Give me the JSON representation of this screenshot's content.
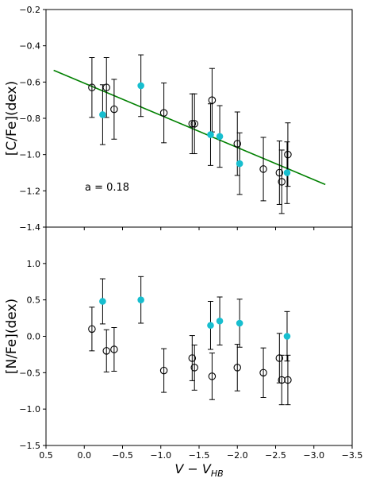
{
  "chart_data": [
    {
      "type": "scatter",
      "title": "",
      "xlabel": "",
      "ylabel": "[C/Fe](dex)",
      "xlim": [
        0.5,
        -3.5
      ],
      "ylim": [
        -1.4,
        -0.2
      ],
      "yticks": [
        -1.4,
        -1.2,
        -1.0,
        -0.8,
        -0.6,
        -0.4,
        -0.2
      ],
      "annotation": "a = 0.18",
      "fit_line": {
        "x": [
          0.4,
          -3.15
        ],
        "y": [
          -0.535,
          -1.165
        ],
        "color": "#008000"
      },
      "series": [
        {
          "marker": "open-circle",
          "color": "#000000",
          "points": [
            {
              "x": -0.1,
              "y": -0.63,
              "err": 0.165
            },
            {
              "x": -0.29,
              "y": -0.63,
              "err": 0.165
            },
            {
              "x": -0.39,
              "y": -0.75,
              "err": 0.165
            },
            {
              "x": -1.04,
              "y": -0.77,
              "err": 0.165
            },
            {
              "x": -1.41,
              "y": -0.83,
              "err": 0.165
            },
            {
              "x": -1.44,
              "y": -0.83,
              "err": 0.165
            },
            {
              "x": -1.67,
              "y": -0.7,
              "err": 0.175
            },
            {
              "x": -2.0,
              "y": -0.94,
              "err": 0.175
            },
            {
              "x": -2.34,
              "y": -1.08,
              "err": 0.175
            },
            {
              "x": -2.55,
              "y": -1.1,
              "err": 0.175
            },
            {
              "x": -2.58,
              "y": -1.15,
              "err": 0.175
            },
            {
              "x": -2.66,
              "y": -1.0,
              "err": 0.175
            }
          ]
        },
        {
          "marker": "filled-circle",
          "color": "#17becf",
          "points": [
            {
              "x": -0.24,
              "y": -0.78,
              "err": 0.165
            },
            {
              "x": -0.74,
              "y": -0.62,
              "err": 0.17
            },
            {
              "x": -1.65,
              "y": -0.89,
              "err": 0.17
            },
            {
              "x": -1.77,
              "y": -0.9,
              "err": 0.17
            },
            {
              "x": -2.03,
              "y": -1.05,
              "err": 0.17
            },
            {
              "x": -2.65,
              "y": -1.1,
              "err": 0.17
            }
          ]
        }
      ]
    },
    {
      "type": "scatter",
      "title": "",
      "xlabel": "V − V",
      "xlabel_sub": "HB",
      "ylabel": "[N/Fe](dex)",
      "xlim": [
        0.5,
        -3.5
      ],
      "ylim": [
        -1.5,
        1.5
      ],
      "xticks": [
        0.5,
        0.0,
        -0.5,
        -1.0,
        -1.5,
        -2.0,
        -2.5,
        -3.0,
        -3.5
      ],
      "xtick_labels": [
        "0.5",
        "0.0",
        "−0.5",
        "−1.0",
        "−1.5",
        "−2.0",
        "−2.5",
        "−3.0",
        "−3.5"
      ],
      "yticks": [
        -1.5,
        -1.0,
        -0.5,
        0.0,
        0.5,
        1.0
      ],
      "series": [
        {
          "marker": "open-circle",
          "color": "#000000",
          "points": [
            {
              "x": -0.1,
              "y": 0.1,
              "err": 0.3
            },
            {
              "x": -0.29,
              "y": -0.2,
              "err": 0.29
            },
            {
              "x": -0.39,
              "y": -0.18,
              "err": 0.3
            },
            {
              "x": -1.04,
              "y": -0.47,
              "err": 0.3
            },
            {
              "x": -1.41,
              "y": -0.3,
              "err": 0.31
            },
            {
              "x": -1.44,
              "y": -0.43,
              "err": 0.31
            },
            {
              "x": -1.67,
              "y": -0.55,
              "err": 0.32
            },
            {
              "x": -2.0,
              "y": -0.43,
              "err": 0.32
            },
            {
              "x": -2.34,
              "y": -0.5,
              "err": 0.34
            },
            {
              "x": -2.55,
              "y": -0.3,
              "err": 0.34
            },
            {
              "x": -2.58,
              "y": -0.6,
              "err": 0.34
            },
            {
              "x": -2.66,
              "y": -0.6,
              "err": 0.34
            }
          ]
        },
        {
          "marker": "filled-circle",
          "color": "#17becf",
          "points": [
            {
              "x": -0.24,
              "y": 0.48,
              "err": 0.31
            },
            {
              "x": -0.74,
              "y": 0.5,
              "err": 0.32
            },
            {
              "x": -1.65,
              "y": 0.15,
              "err": 0.33
            },
            {
              "x": -1.77,
              "y": 0.21,
              "err": 0.33
            },
            {
              "x": -2.03,
              "y": 0.18,
              "err": 0.33
            },
            {
              "x": -2.65,
              "y": 0.0,
              "err": 0.34
            }
          ]
        }
      ]
    }
  ]
}
